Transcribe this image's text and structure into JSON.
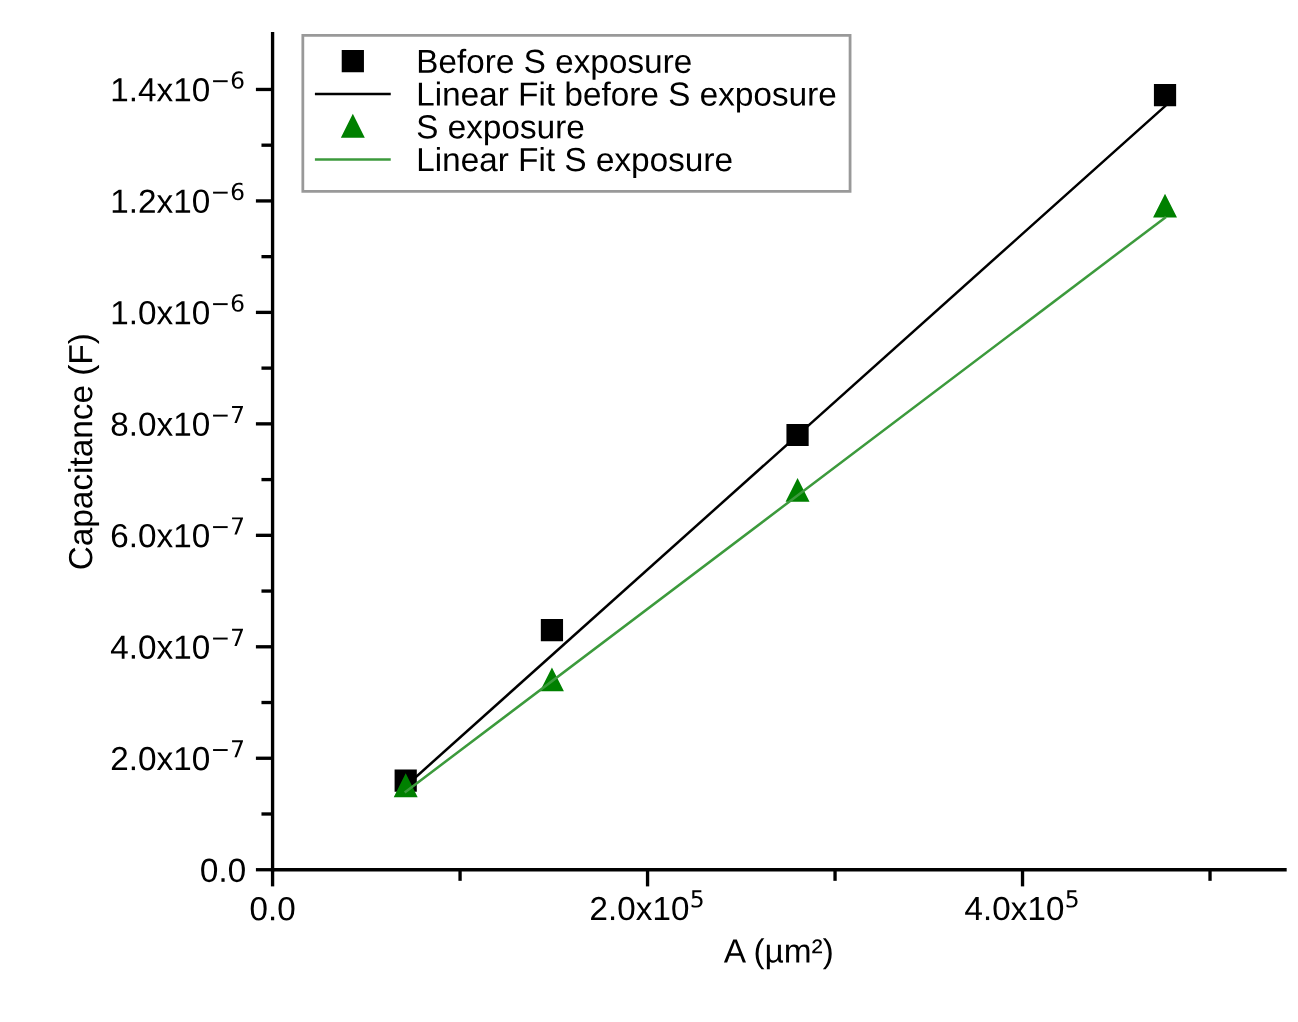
{
  "chart_data": {
    "type": "scatter",
    "xlabel": "A (µm²)",
    "ylabel": "Capacitance (F)",
    "xlim": [
      0,
      540000
    ],
    "ylim": [
      0,
      1.5e-06
    ],
    "xticks": [
      {
        "value": 0,
        "label": "0.0"
      },
      {
        "value": 100000,
        "label": null
      },
      {
        "value": 200000,
        "label": "2.0x10$^{5}$"
      },
      {
        "value": 300000,
        "label": null
      },
      {
        "value": 400000,
        "label": "4.0x10$^{5}$"
      },
      {
        "value": 500000,
        "label": null
      }
    ],
    "yticks": [
      {
        "value": 0,
        "label": "0.0"
      },
      {
        "value": 1e-07,
        "label": null
      },
      {
        "value": 2e-07,
        "label": "2.0x10$^{−7}$"
      },
      {
        "value": 3e-07,
        "label": null
      },
      {
        "value": 4e-07,
        "label": "4.0x10$^{−7}$"
      },
      {
        "value": 5e-07,
        "label": null
      },
      {
        "value": 6e-07,
        "label": "6.0x10$^{−7}$"
      },
      {
        "value": 7e-07,
        "label": null
      },
      {
        "value": 8e-07,
        "label": "8.0x10$^{−7}$"
      },
      {
        "value": 9e-07,
        "label": null
      },
      {
        "value": 1e-06,
        "label": "1.0x10$^{−6}$"
      },
      {
        "value": 1.1e-06,
        "label": null
      },
      {
        "value": 1.2e-06,
        "label": "1.2x10$^{−6}$"
      },
      {
        "value": 1.3e-06,
        "label": null
      },
      {
        "value": 1.4e-06,
        "label": "1.4x10$^{−6}$"
      }
    ],
    "grid": false,
    "legend": "top left",
    "series": [
      {
        "name": "Before S exposure",
        "type": "scatter",
        "marker": "square",
        "color": "#000000",
        "x": [
          71000,
          149000,
          280000,
          476000
        ],
        "values": [
          1.6e-07,
          4.3e-07,
          7.8e-07,
          1.39e-06
        ]
      },
      {
        "name": "Linear Fit before S exposure",
        "type": "line",
        "line_style": "solid",
        "color": "#000000",
        "x": [
          71000,
          476000
        ],
        "values": [
          1.5e-07,
          1.37e-06
        ]
      },
      {
        "name": "S exposure",
        "type": "scatter",
        "marker": "triangle",
        "color": "#008000",
        "x": [
          71000,
          149000,
          280000,
          476000
        ],
        "values": [
          1.5e-07,
          3.4e-07,
          6.8e-07,
          1.19e-06
        ]
      },
      {
        "name": "Linear Fit S exposure",
        "type": "line",
        "line_style": "solid",
        "color": "#3c9a3c",
        "x": [
          71000,
          476000
        ],
        "values": [
          1.4e-07,
          1.17e-06
        ]
      }
    ]
  }
}
